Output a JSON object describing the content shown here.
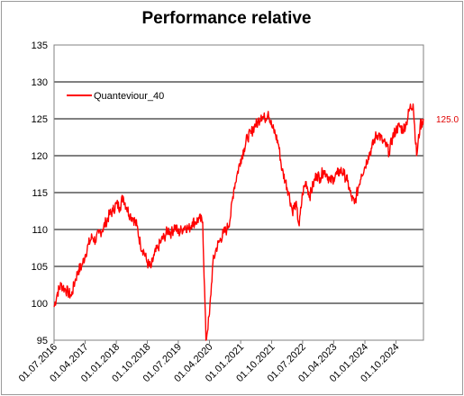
{
  "chart_data": {
    "type": "line",
    "title": "Performance relative",
    "xlabel": "",
    "ylabel": "",
    "ylim": [
      95,
      135
    ],
    "y_ticks": [
      95,
      100,
      105,
      110,
      115,
      120,
      125,
      130,
      135
    ],
    "x_range": [
      "2016-07-01",
      "2025-05-31"
    ],
    "x_ticks": [
      "01.07.2016",
      "01.04.2017",
      "01.01.2018",
      "01.10.2018",
      "01.07.2019",
      "01.04.2020",
      "01.01.2021",
      "01.10.2021",
      "01.07.2022",
      "01.04.2023",
      "01.01.2024",
      "01.10.2024"
    ],
    "grid": "horizontal",
    "legend_position": "top-left",
    "end_label": "125.0",
    "series": [
      {
        "name": "Quanteviour_40",
        "color": "#ff0000",
        "points": [
          [
            "2016-07-01",
            99.5
          ],
          [
            "2016-08-01",
            101.5
          ],
          [
            "2016-09-01",
            102.5
          ],
          [
            "2016-10-01",
            102.0
          ],
          [
            "2016-11-01",
            101.5
          ],
          [
            "2016-12-01",
            101.0
          ],
          [
            "2017-01-01",
            103.0
          ],
          [
            "2017-02-01",
            104.5
          ],
          [
            "2017-03-01",
            105.0
          ],
          [
            "2017-04-01",
            106.5
          ],
          [
            "2017-05-01",
            108.0
          ],
          [
            "2017-06-01",
            109.0
          ],
          [
            "2017-07-01",
            108.5
          ],
          [
            "2017-08-01",
            109.5
          ],
          [
            "2017-09-01",
            110.0
          ],
          [
            "2017-10-01",
            111.0
          ],
          [
            "2017-11-01",
            112.0
          ],
          [
            "2017-12-01",
            112.5
          ],
          [
            "2018-01-01",
            113.5
          ],
          [
            "2018-02-01",
            113.0
          ],
          [
            "2018-03-01",
            114.5
          ],
          [
            "2018-04-01",
            113.0
          ],
          [
            "2018-05-01",
            112.0
          ],
          [
            "2018-06-01",
            111.5
          ],
          [
            "2018-07-01",
            110.5
          ],
          [
            "2018-08-01",
            108.0
          ],
          [
            "2018-09-01",
            107.0
          ],
          [
            "2018-10-01",
            105.5
          ],
          [
            "2018-11-01",
            104.8
          ],
          [
            "2018-12-01",
            106.5
          ],
          [
            "2019-01-01",
            107.5
          ],
          [
            "2019-02-01",
            108.5
          ],
          [
            "2019-03-01",
            109.0
          ],
          [
            "2019-04-01",
            110.0
          ],
          [
            "2019-05-01",
            109.5
          ],
          [
            "2019-06-01",
            110.5
          ],
          [
            "2019-07-01",
            109.5
          ],
          [
            "2019-08-01",
            110.0
          ],
          [
            "2019-09-01",
            110.5
          ],
          [
            "2019-10-01",
            110.0
          ],
          [
            "2019-11-01",
            111.0
          ],
          [
            "2019-12-01",
            111.0
          ],
          [
            "2020-01-01",
            111.5
          ],
          [
            "2020-02-01",
            111.0
          ],
          [
            "2020-03-01",
            95.0
          ],
          [
            "2020-04-01",
            98.5
          ],
          [
            "2020-05-01",
            105.5
          ],
          [
            "2020-06-01",
            107.5
          ],
          [
            "2020-07-01",
            108.5
          ],
          [
            "2020-08-01",
            109.5
          ],
          [
            "2020-09-01",
            110.0
          ],
          [
            "2020-10-01",
            111.5
          ],
          [
            "2020-11-01",
            115.5
          ],
          [
            "2020-12-01",
            117.5
          ],
          [
            "2021-01-01",
            119.5
          ],
          [
            "2021-02-01",
            121.0
          ],
          [
            "2021-03-01",
            122.5
          ],
          [
            "2021-04-01",
            123.0
          ],
          [
            "2021-05-01",
            124.0
          ],
          [
            "2021-06-01",
            124.5
          ],
          [
            "2021-07-01",
            125.5
          ],
          [
            "2021-08-01",
            125.0
          ],
          [
            "2021-09-01",
            126.0
          ],
          [
            "2021-10-01",
            124.0
          ],
          [
            "2021-11-01",
            123.0
          ],
          [
            "2021-12-01",
            121.5
          ],
          [
            "2022-01-01",
            118.0
          ],
          [
            "2022-02-01",
            116.5
          ],
          [
            "2022-03-01",
            115.0
          ],
          [
            "2022-04-01",
            112.5
          ],
          [
            "2022-05-01",
            113.5
          ],
          [
            "2022-06-01",
            110.5
          ],
          [
            "2022-07-01",
            115.0
          ],
          [
            "2022-08-01",
            116.5
          ],
          [
            "2022-09-01",
            114.5
          ],
          [
            "2022-10-01",
            116.0
          ],
          [
            "2022-11-01",
            117.5
          ],
          [
            "2022-12-01",
            117.0
          ],
          [
            "2023-01-01",
            118.0
          ],
          [
            "2023-02-01",
            117.5
          ],
          [
            "2023-03-01",
            116.5
          ],
          [
            "2023-04-01",
            117.0
          ],
          [
            "2023-05-01",
            117.5
          ],
          [
            "2023-06-01",
            118.0
          ],
          [
            "2023-07-01",
            117.5
          ],
          [
            "2023-08-01",
            116.5
          ],
          [
            "2023-09-01",
            114.5
          ],
          [
            "2023-10-01",
            113.5
          ],
          [
            "2023-11-01",
            115.5
          ],
          [
            "2023-12-01",
            117.5
          ],
          [
            "2024-01-01",
            118.5
          ],
          [
            "2024-02-01",
            120.0
          ],
          [
            "2024-03-01",
            121.0
          ],
          [
            "2024-04-01",
            122.5
          ],
          [
            "2024-05-01",
            123.0
          ],
          [
            "2024-06-01",
            122.0
          ],
          [
            "2024-07-01",
            121.5
          ],
          [
            "2024-08-01",
            120.5
          ],
          [
            "2024-09-01",
            122.5
          ],
          [
            "2024-10-01",
            123.5
          ],
          [
            "2024-11-01",
            124.0
          ],
          [
            "2024-12-01",
            123.5
          ],
          [
            "2025-01-01",
            124.5
          ],
          [
            "2025-02-01",
            126.5
          ],
          [
            "2025-03-01",
            127.0
          ],
          [
            "2025-04-01",
            120.0
          ],
          [
            "2025-05-01",
            124.0
          ],
          [
            "2025-05-31",
            125.0
          ]
        ]
      }
    ]
  }
}
